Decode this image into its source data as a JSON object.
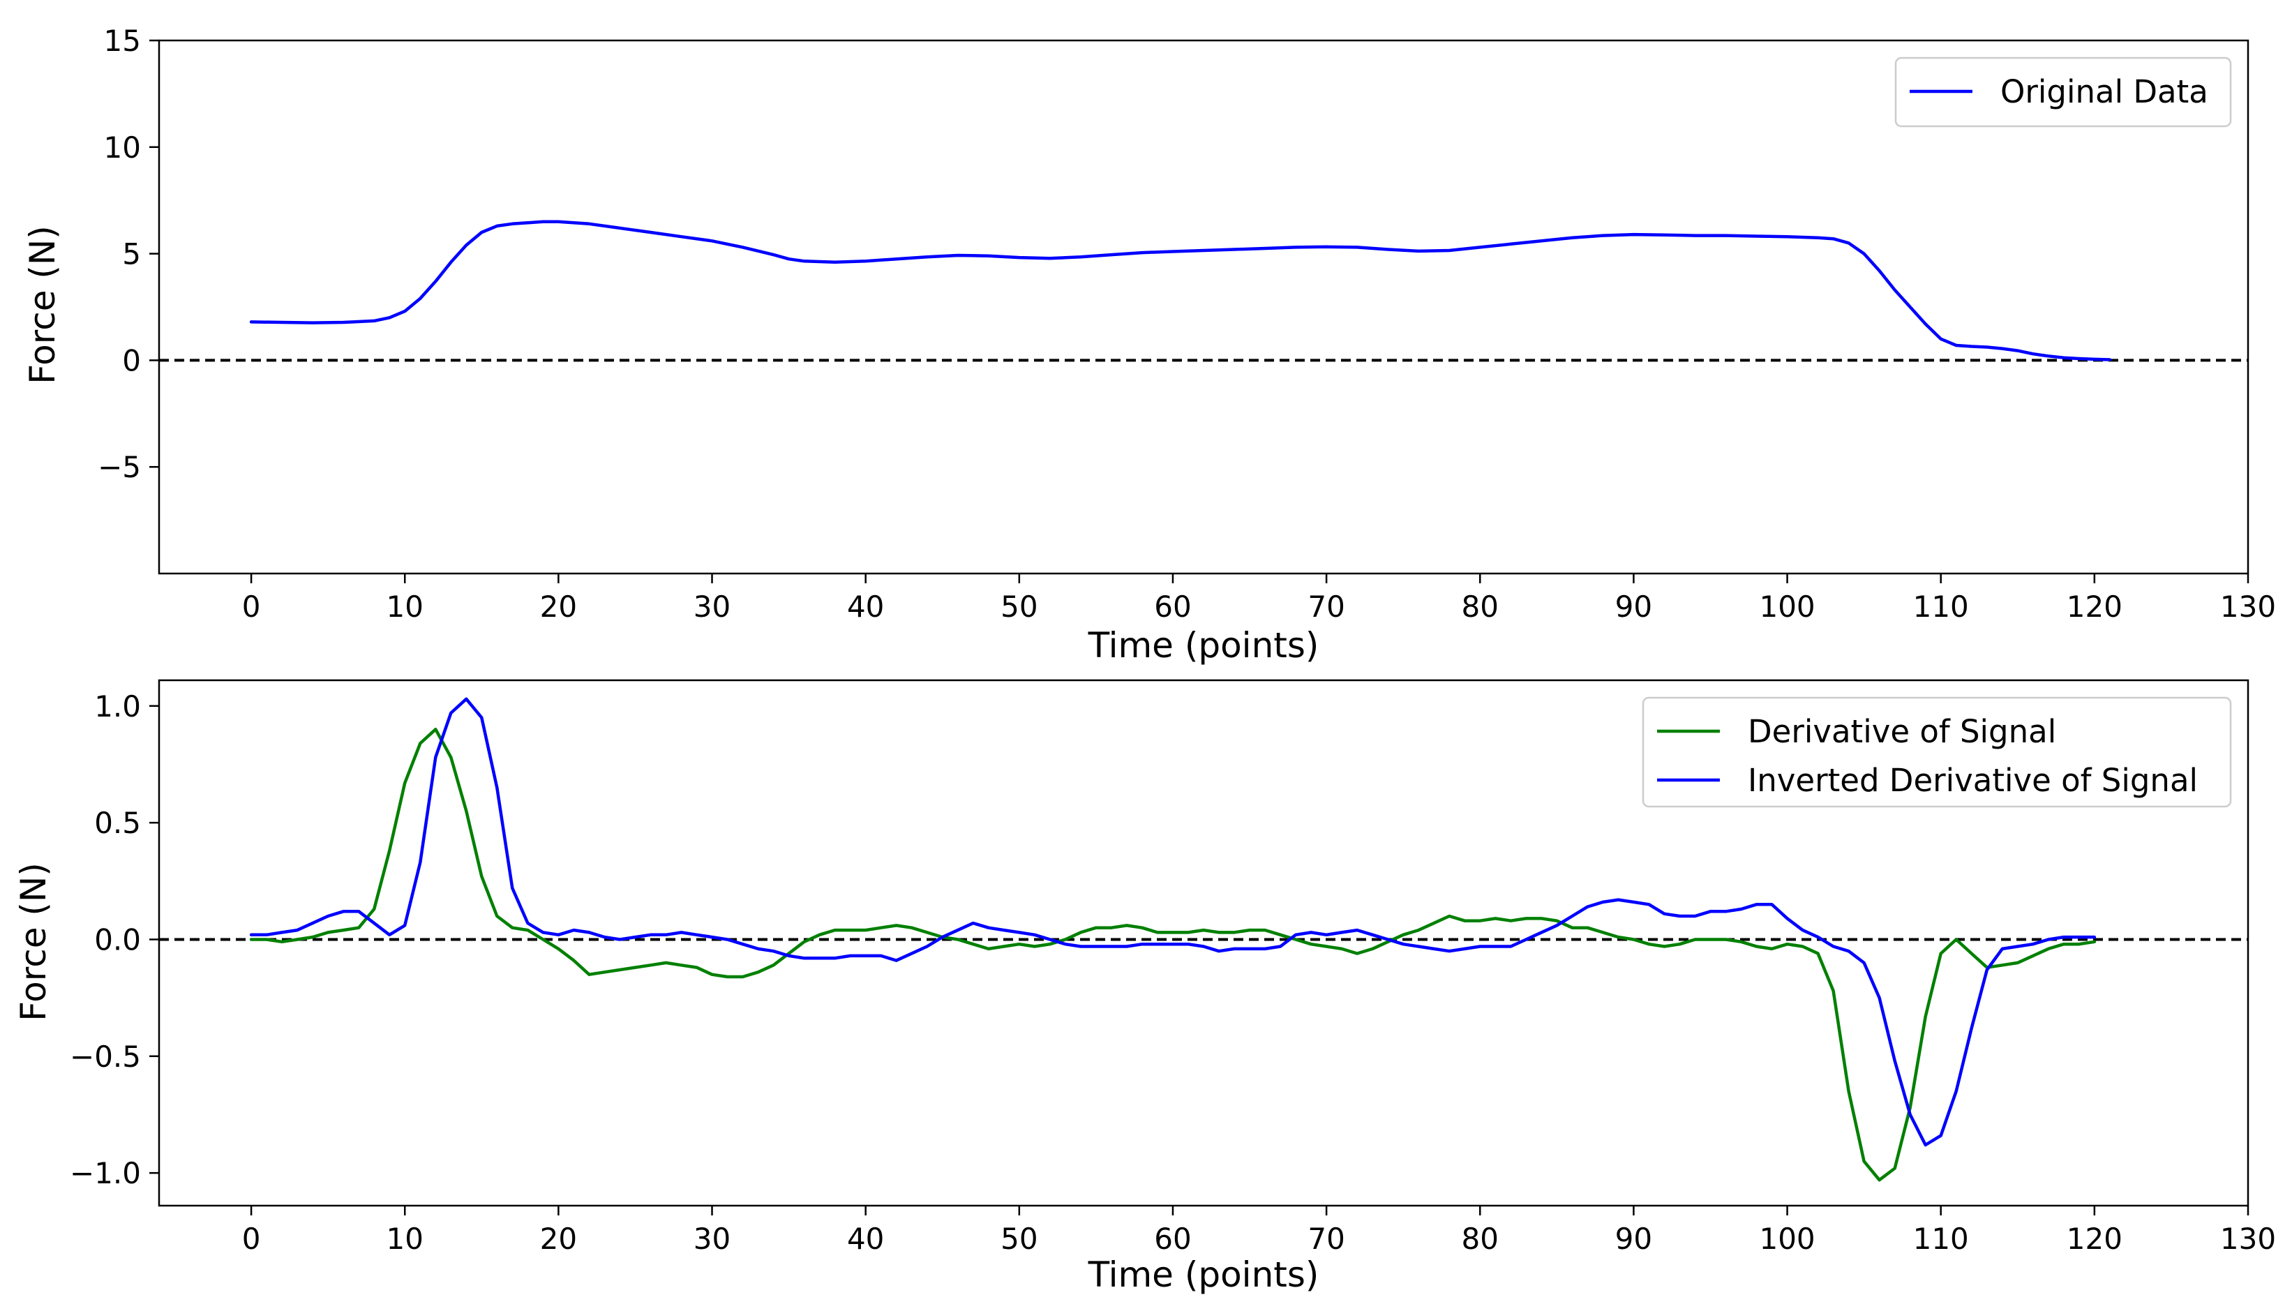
{
  "chart_data": [
    {
      "type": "line",
      "title": "",
      "xlabel": "Time (points)",
      "ylabel": "Force (N)",
      "xlim": [
        -6,
        130
      ],
      "ylim": [
        -10,
        15
      ],
      "xticks": [
        0,
        10,
        20,
        30,
        40,
        50,
        60,
        70,
        80,
        90,
        100,
        110,
        120,
        130
      ],
      "yticks": [
        -5,
        0,
        5,
        10,
        15
      ],
      "xtick_labels": [
        "0",
        "10",
        "20",
        "30",
        "40",
        "50",
        "60",
        "70",
        "80",
        "90",
        "100",
        "110",
        "120",
        "130"
      ],
      "ytick_labels": [
        "−5",
        "0",
        "5",
        "10",
        "15"
      ],
      "reference_line": {
        "y": 0,
        "style": "dashed",
        "color": "#000000"
      },
      "legend_location": "upper right",
      "series": [
        {
          "name": "Original Data",
          "color": "#0000ff",
          "x": [
            0,
            2,
            4,
            6,
            8,
            9,
            10,
            11,
            12,
            13,
            14,
            15,
            16,
            17,
            18,
            19,
            20,
            22,
            24,
            26,
            28,
            30,
            32,
            34,
            35,
            36,
            38,
            40,
            42,
            44,
            46,
            48,
            50,
            52,
            54,
            56,
            58,
            60,
            62,
            64,
            66,
            68,
            70,
            72,
            74,
            76,
            78,
            80,
            82,
            84,
            86,
            88,
            90,
            92,
            94,
            96,
            98,
            100,
            102,
            103,
            104,
            105,
            106,
            107,
            108,
            109,
            110,
            111,
            112,
            113,
            114,
            115,
            116,
            117,
            118,
            119,
            120,
            121
          ],
          "values": [
            1.8,
            1.78,
            1.76,
            1.78,
            1.85,
            2.0,
            2.3,
            2.9,
            3.7,
            4.6,
            5.4,
            6.0,
            6.3,
            6.4,
            6.45,
            6.5,
            6.5,
            6.4,
            6.2,
            6.0,
            5.8,
            5.6,
            5.3,
            4.95,
            4.75,
            4.65,
            4.6,
            4.65,
            4.75,
            4.85,
            4.92,
            4.9,
            4.82,
            4.78,
            4.85,
            4.95,
            5.05,
            5.1,
            5.15,
            5.2,
            5.25,
            5.3,
            5.32,
            5.3,
            5.2,
            5.12,
            5.15,
            5.3,
            5.45,
            5.6,
            5.75,
            5.85,
            5.9,
            5.88,
            5.85,
            5.85,
            5.82,
            5.8,
            5.75,
            5.7,
            5.5,
            5.0,
            4.2,
            3.3,
            2.5,
            1.7,
            1.0,
            0.7,
            0.65,
            0.62,
            0.55,
            0.45,
            0.3,
            0.2,
            0.12,
            0.08,
            0.05,
            0.03
          ]
        }
      ]
    },
    {
      "type": "line",
      "title": "",
      "xlabel": "Time (points)",
      "ylabel": "Force (N)",
      "xlim": [
        -6,
        130
      ],
      "ylim": [
        -1.14,
        1.11
      ],
      "xticks": [
        0,
        10,
        20,
        30,
        40,
        50,
        60,
        70,
        80,
        90,
        100,
        110,
        120,
        130
      ],
      "yticks": [
        -1.0,
        -0.5,
        0.0,
        0.5,
        1.0
      ],
      "xtick_labels": [
        "0",
        "10",
        "20",
        "30",
        "40",
        "50",
        "60",
        "70",
        "80",
        "90",
        "100",
        "110",
        "120",
        "130"
      ],
      "ytick_labels": [
        "−1.0",
        "−0.5",
        "0.0",
        "0.5",
        "1.0"
      ],
      "reference_line": {
        "y": 0,
        "style": "dashed",
        "color": "#000000"
      },
      "legend_location": "upper right",
      "series": [
        {
          "name": "Derivative of Signal",
          "color": "#008000",
          "x": [
            0,
            1,
            2,
            3,
            4,
            5,
            6,
            7,
            8,
            9,
            10,
            11,
            12,
            13,
            14,
            15,
            16,
            17,
            18,
            19,
            20,
            21,
            22,
            23,
            24,
            25,
            26,
            27,
            28,
            29,
            30,
            31,
            32,
            33,
            34,
            35,
            36,
            37,
            38,
            39,
            40,
            41,
            42,
            43,
            44,
            45,
            46,
            47,
            48,
            49,
            50,
            51,
            52,
            53,
            54,
            55,
            56,
            57,
            58,
            59,
            60,
            61,
            62,
            63,
            64,
            65,
            66,
            67,
            68,
            69,
            70,
            71,
            72,
            73,
            74,
            75,
            76,
            77,
            78,
            79,
            80,
            81,
            82,
            83,
            84,
            85,
            86,
            87,
            88,
            89,
            90,
            91,
            92,
            93,
            94,
            95,
            96,
            97,
            98,
            99,
            100,
            101,
            102,
            103,
            104,
            105,
            106,
            107,
            108,
            109,
            110,
            111,
            112,
            113,
            114,
            115,
            116,
            117,
            118,
            119,
            120
          ],
          "values": [
            0.0,
            0.0,
            -0.01,
            0.0,
            0.01,
            0.03,
            0.04,
            0.05,
            0.13,
            0.38,
            0.67,
            0.84,
            0.9,
            0.78,
            0.55,
            0.27,
            0.1,
            0.05,
            0.04,
            0.0,
            -0.04,
            -0.09,
            -0.15,
            -0.14,
            -0.13,
            -0.12,
            -0.11,
            -0.1,
            -0.11,
            -0.12,
            -0.15,
            -0.16,
            -0.16,
            -0.14,
            -0.11,
            -0.06,
            -0.01,
            0.02,
            0.04,
            0.04,
            0.04,
            0.05,
            0.06,
            0.05,
            0.03,
            0.01,
            0.0,
            -0.02,
            -0.04,
            -0.03,
            -0.02,
            -0.03,
            -0.02,
            0.0,
            0.03,
            0.05,
            0.05,
            0.06,
            0.05,
            0.03,
            0.03,
            0.03,
            0.04,
            0.03,
            0.03,
            0.04,
            0.04,
            0.02,
            0.0,
            -0.02,
            -0.03,
            -0.04,
            -0.06,
            -0.04,
            -0.01,
            0.02,
            0.04,
            0.07,
            0.1,
            0.08,
            0.08,
            0.09,
            0.08,
            0.09,
            0.09,
            0.08,
            0.05,
            0.05,
            0.03,
            0.01,
            0.0,
            -0.02,
            -0.03,
            -0.02,
            0.0,
            0.0,
            0.0,
            -0.01,
            -0.03,
            -0.04,
            -0.02,
            -0.03,
            -0.06,
            -0.22,
            -0.65,
            -0.95,
            -1.03,
            -0.98,
            -0.72,
            -0.33,
            -0.06,
            0.0,
            -0.06,
            -0.12,
            -0.11,
            -0.1,
            -0.07,
            -0.04,
            -0.02,
            -0.02,
            -0.01
          ]
        },
        {
          "name": "Inverted Derivative of Signal",
          "color": "#0000ff",
          "x": [
            0,
            1,
            2,
            3,
            4,
            5,
            6,
            7,
            8,
            9,
            10,
            11,
            12,
            13,
            14,
            15,
            16,
            17,
            18,
            19,
            20,
            21,
            22,
            23,
            24,
            25,
            26,
            27,
            28,
            29,
            30,
            31,
            32,
            33,
            34,
            35,
            36,
            37,
            38,
            39,
            40,
            41,
            42,
            43,
            44,
            45,
            46,
            47,
            48,
            49,
            50,
            51,
            52,
            53,
            54,
            55,
            56,
            57,
            58,
            59,
            60,
            61,
            62,
            63,
            64,
            65,
            66,
            67,
            68,
            69,
            70,
            71,
            72,
            73,
            74,
            75,
            76,
            77,
            78,
            79,
            80,
            81,
            82,
            83,
            84,
            85,
            86,
            87,
            88,
            89,
            90,
            91,
            92,
            93,
            94,
            95,
            96,
            97,
            98,
            99,
            100,
            101,
            102,
            103,
            104,
            105,
            106,
            107,
            108,
            109,
            110,
            111,
            112,
            113,
            114,
            115,
            116,
            117,
            118,
            119,
            120
          ],
          "values": [
            0.02,
            0.02,
            0.03,
            0.04,
            0.07,
            0.1,
            0.12,
            0.12,
            0.07,
            0.02,
            0.06,
            0.33,
            0.78,
            0.97,
            1.03,
            0.95,
            0.65,
            0.22,
            0.07,
            0.03,
            0.02,
            0.04,
            0.03,
            0.01,
            0.0,
            0.01,
            0.02,
            0.02,
            0.03,
            0.02,
            0.01,
            0.0,
            -0.02,
            -0.04,
            -0.05,
            -0.07,
            -0.08,
            -0.08,
            -0.08,
            -0.07,
            -0.07,
            -0.07,
            -0.09,
            -0.06,
            -0.03,
            0.01,
            0.04,
            0.07,
            0.05,
            0.04,
            0.03,
            0.02,
            0.0,
            -0.02,
            -0.03,
            -0.03,
            -0.03,
            -0.03,
            -0.02,
            -0.02,
            -0.02,
            -0.02,
            -0.03,
            -0.05,
            -0.04,
            -0.04,
            -0.04,
            -0.03,
            0.02,
            0.03,
            0.02,
            0.03,
            0.04,
            0.02,
            0.0,
            -0.02,
            -0.03,
            -0.04,
            -0.05,
            -0.04,
            -0.03,
            -0.03,
            -0.03,
            0.0,
            0.03,
            0.06,
            0.1,
            0.14,
            0.16,
            0.17,
            0.16,
            0.15,
            0.11,
            0.1,
            0.1,
            0.12,
            0.12,
            0.13,
            0.15,
            0.15,
            0.09,
            0.04,
            0.01,
            -0.03,
            -0.05,
            -0.1,
            -0.25,
            -0.52,
            -0.75,
            -0.88,
            -0.84,
            -0.65,
            -0.38,
            -0.13,
            -0.04,
            -0.03,
            -0.02,
            0.0,
            0.01,
            0.01,
            0.01
          ]
        }
      ]
    }
  ]
}
